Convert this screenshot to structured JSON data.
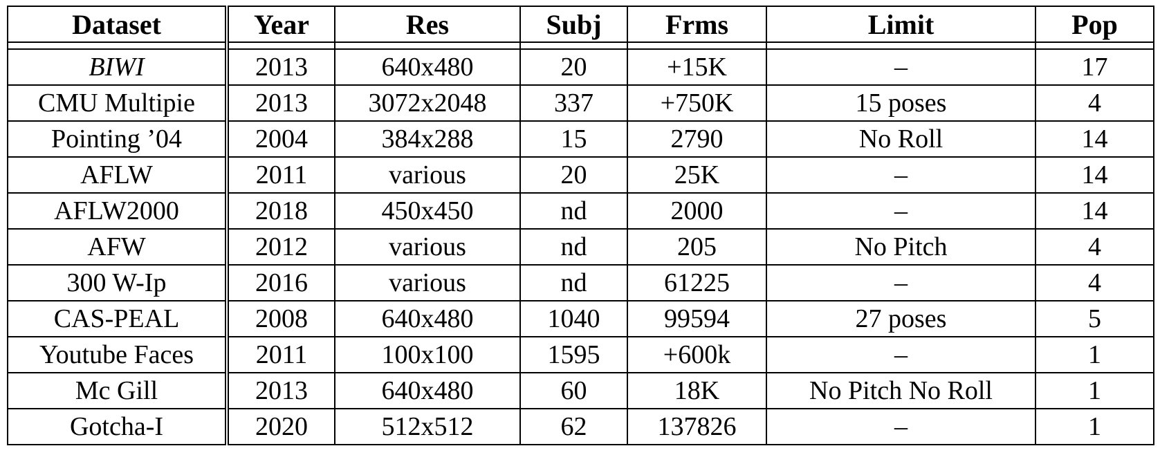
{
  "headers": [
    "Dataset",
    "Year",
    "Res",
    "Subj",
    "Frms",
    "Limit",
    "Pop"
  ],
  "rows": [
    [
      "BIWI",
      "2013",
      "640x480",
      "20",
      "+15K",
      "–",
      "17"
    ],
    [
      "CMU Multipie",
      "2013",
      "3072x2048",
      "337",
      "+750K",
      "15 poses",
      "4"
    ],
    [
      "Pointing ’04",
      "2004",
      "384x288",
      "15",
      "2790",
      "No Roll",
      "14"
    ],
    [
      "AFLW",
      "2011",
      "various",
      "20",
      "25K",
      "–",
      "14"
    ],
    [
      "AFLW2000",
      "2018",
      "450x450",
      "nd",
      "2000",
      "–",
      "14"
    ],
    [
      "AFW",
      "2012",
      "various",
      "nd",
      "205",
      "No Pitch",
      "4"
    ],
    [
      "300 W-Ip",
      "2016",
      "various",
      "nd",
      "61225",
      "–",
      "4"
    ],
    [
      "CAS-PEAL",
      "2008",
      "640x480",
      "1040",
      "99594",
      "27 poses",
      "5"
    ],
    [
      "Youtube Faces",
      "2011",
      "100x100",
      "1595",
      "+600k",
      "–",
      "1"
    ],
    [
      "Mc Gill",
      "2013",
      "640x480",
      "60",
      "18K",
      "No Pitch No Roll",
      "1"
    ],
    [
      "Gotcha-I",
      "2020",
      "512x512",
      "62",
      "137826",
      "–",
      "1"
    ]
  ]
}
